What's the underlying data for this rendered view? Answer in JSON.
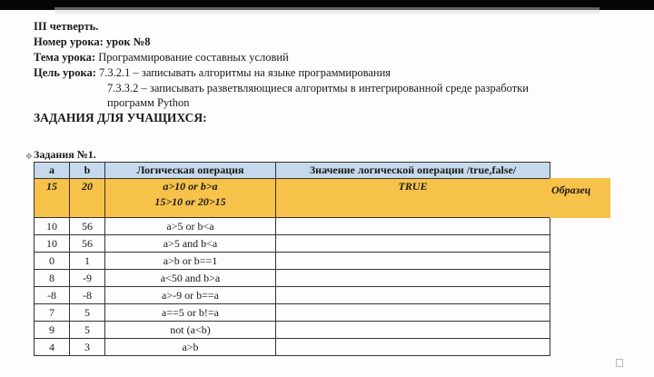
{
  "header": {
    "quarter": "III четверть.",
    "lesson_number_label": "Номер урока:",
    "lesson_number": "урок №8",
    "topic_label": "Тема урока:",
    "topic": "Программирование составных условий",
    "goal_label": "Цель урока:",
    "goal_1": "7.3.2.1 – записывать алгоритмы на языке программирования",
    "goal_2a": "7.3.3.2 – записывать разветвляющиеся алгоритмы в интегрированной среде разработки",
    "goal_2b": "программ Python",
    "tasks_heading": "ЗАДАНИЯ ДЛЯ УЧАЩИХСЯ:"
  },
  "task": {
    "title": "Задания №1.",
    "headers": [
      "a",
      "b",
      "Логическая операция",
      "Значение логической операции /true,false/"
    ],
    "sample": {
      "a": "15",
      "b": "20",
      "op_1": "a>10 or b>a",
      "op_2": "15>10 or 20>15",
      "value": "TRUE",
      "label": "Образец"
    },
    "rows": [
      {
        "a": "10",
        "b": "56",
        "op": "a>5 or b<a",
        "value": ""
      },
      {
        "a": "10",
        "b": "56",
        "op": "a>5 and b<a",
        "value": ""
      },
      {
        "a": "0",
        "b": "1",
        "op": "a>b or b==1",
        "value": ""
      },
      {
        "a": "8",
        "b": "-9",
        "op": "a<50 and b>a",
        "value": ""
      },
      {
        "a": "-8",
        "b": "-8",
        "op": "a>-9 or b==a",
        "value": ""
      },
      {
        "a": "7",
        "b": "5",
        "op": "a==5 or b!=a",
        "value": ""
      },
      {
        "a": "9",
        "b": "5",
        "op": "not (a<b)",
        "value": ""
      },
      {
        "a": "4",
        "b": "3",
        "op": "a>b",
        "value": ""
      }
    ]
  },
  "colors": {
    "header_bg": "#c6d9ec",
    "sample_bg": "#f6c24a"
  }
}
